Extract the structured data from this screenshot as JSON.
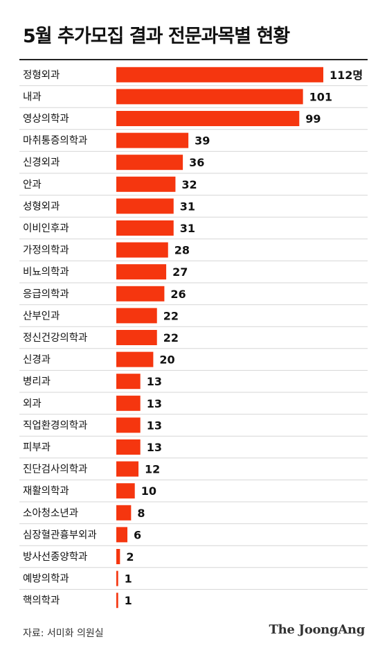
{
  "title": "5월 추가모집 결과 전문과목별 현황",
  "source": "자료: 서미화 의원실",
  "brand": "The JoongAng",
  "colors": {
    "bar": "#f5360f",
    "separator": "#d6d6d6",
    "rule": "#222222"
  },
  "chart_data": {
    "type": "bar",
    "orientation": "horizontal",
    "title": "5월 추가모집 결과 전문과목별 현황",
    "xlabel": "",
    "ylabel": "",
    "unit_suffix_first_label": "명",
    "xlim": [
      0,
      112
    ],
    "grid": false,
    "categories": [
      "정형외과",
      "내과",
      "영상의학과",
      "마취통증의학과",
      "신경외과",
      "안과",
      "성형외과",
      "이비인후과",
      "가정의학과",
      "비뇨의학과",
      "응급의학과",
      "산부인과",
      "정신건강의학과",
      "신경과",
      "병리과",
      "외과",
      "직업환경의학과",
      "피부과",
      "진단검사의학과",
      "재활의학과",
      "소아청소년과",
      "심장혈관흉부외과",
      "방사선종양학과",
      "예방의학과",
      "핵의학과"
    ],
    "values": [
      112,
      101,
      99,
      39,
      36,
      32,
      31,
      31,
      28,
      27,
      26,
      22,
      22,
      20,
      13,
      13,
      13,
      13,
      12,
      10,
      8,
      6,
      2,
      1,
      1
    ],
    "value_labels": [
      "112명",
      "101",
      "99",
      "39",
      "36",
      "32",
      "31",
      "31",
      "28",
      "27",
      "26",
      "22",
      "22",
      "20",
      "13",
      "13",
      "13",
      "13",
      "12",
      "10",
      "8",
      "6",
      "2",
      "1",
      "1"
    ]
  }
}
